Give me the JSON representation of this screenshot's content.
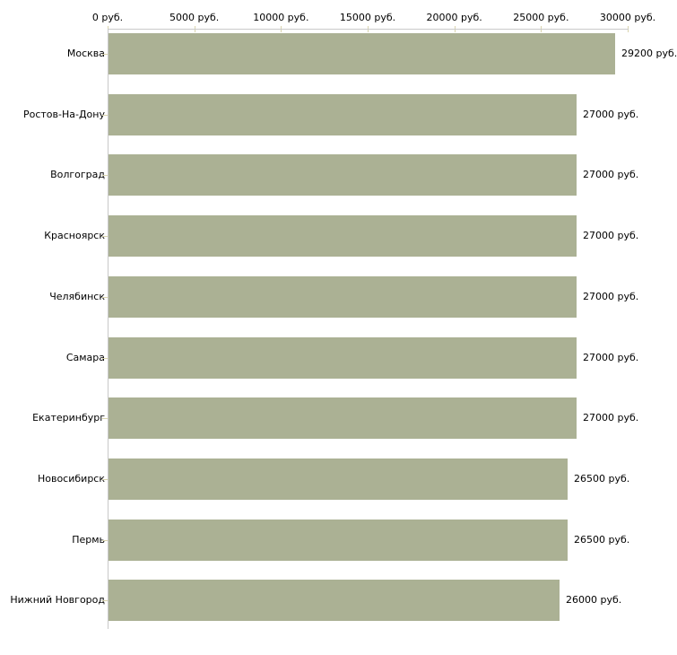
{
  "chart_data": {
    "type": "bar",
    "orientation": "horizontal",
    "title": "",
    "categories": [
      "Москва",
      "Ростов-На-Дону",
      "Волгоград",
      "Красноярск",
      "Челябинск",
      "Самара",
      "Екатеринбург",
      "Новосибирск",
      "Пермь",
      "Нижний Новгород"
    ],
    "values": [
      29200,
      27000,
      27000,
      27000,
      27000,
      27000,
      27000,
      26500,
      26500,
      26000
    ],
    "value_labels": [
      "29200 руб.",
      "27000 руб.",
      "27000 руб.",
      "27000 руб.",
      "27000 руб.",
      "27000 руб.",
      "27000 руб.",
      "26500 руб.",
      "26500 руб.",
      "26000 руб."
    ],
    "xlabel": "",
    "ylabel": "",
    "xlim": [
      0,
      30000
    ],
    "x_ticks": [
      0,
      5000,
      10000,
      15000,
      20000,
      25000,
      30000
    ],
    "x_tick_labels": [
      "0 руб.",
      "5000 руб.",
      "10000 руб.",
      "15000 руб.",
      "20000 руб.",
      "25000 руб.",
      "30000 руб."
    ],
    "unit": "руб.",
    "grid": false,
    "legend": null,
    "colors": {
      "bar": "#abb194",
      "axis_line": "#c9c9c9",
      "tick_mark": "#d9d4ae",
      "text": "#000000",
      "background": "#ffffff"
    }
  }
}
